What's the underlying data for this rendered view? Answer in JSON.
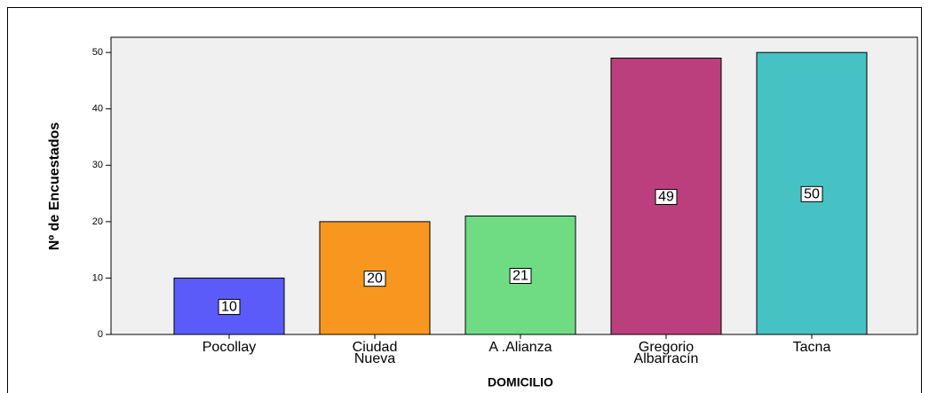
{
  "chart_data": {
    "type": "bar",
    "categories": [
      "Pocollay",
      "Ciudad\nNueva",
      "A .Alianza",
      "Gregorio\nAlbarracín",
      "Tacna"
    ],
    "values": [
      10,
      20,
      21,
      49,
      50
    ],
    "colors": [
      "#5b5bf9",
      "#f7971f",
      "#6fdc83",
      "#ba3f7c",
      "#46c2c5"
    ],
    "ylim": [
      0,
      52.7
    ],
    "yticks": [
      0,
      10,
      20,
      30,
      40,
      50
    ],
    "xlabel": "DOMICILIO",
    "ylabel": "Nº de Encuestados",
    "grid": false
  }
}
